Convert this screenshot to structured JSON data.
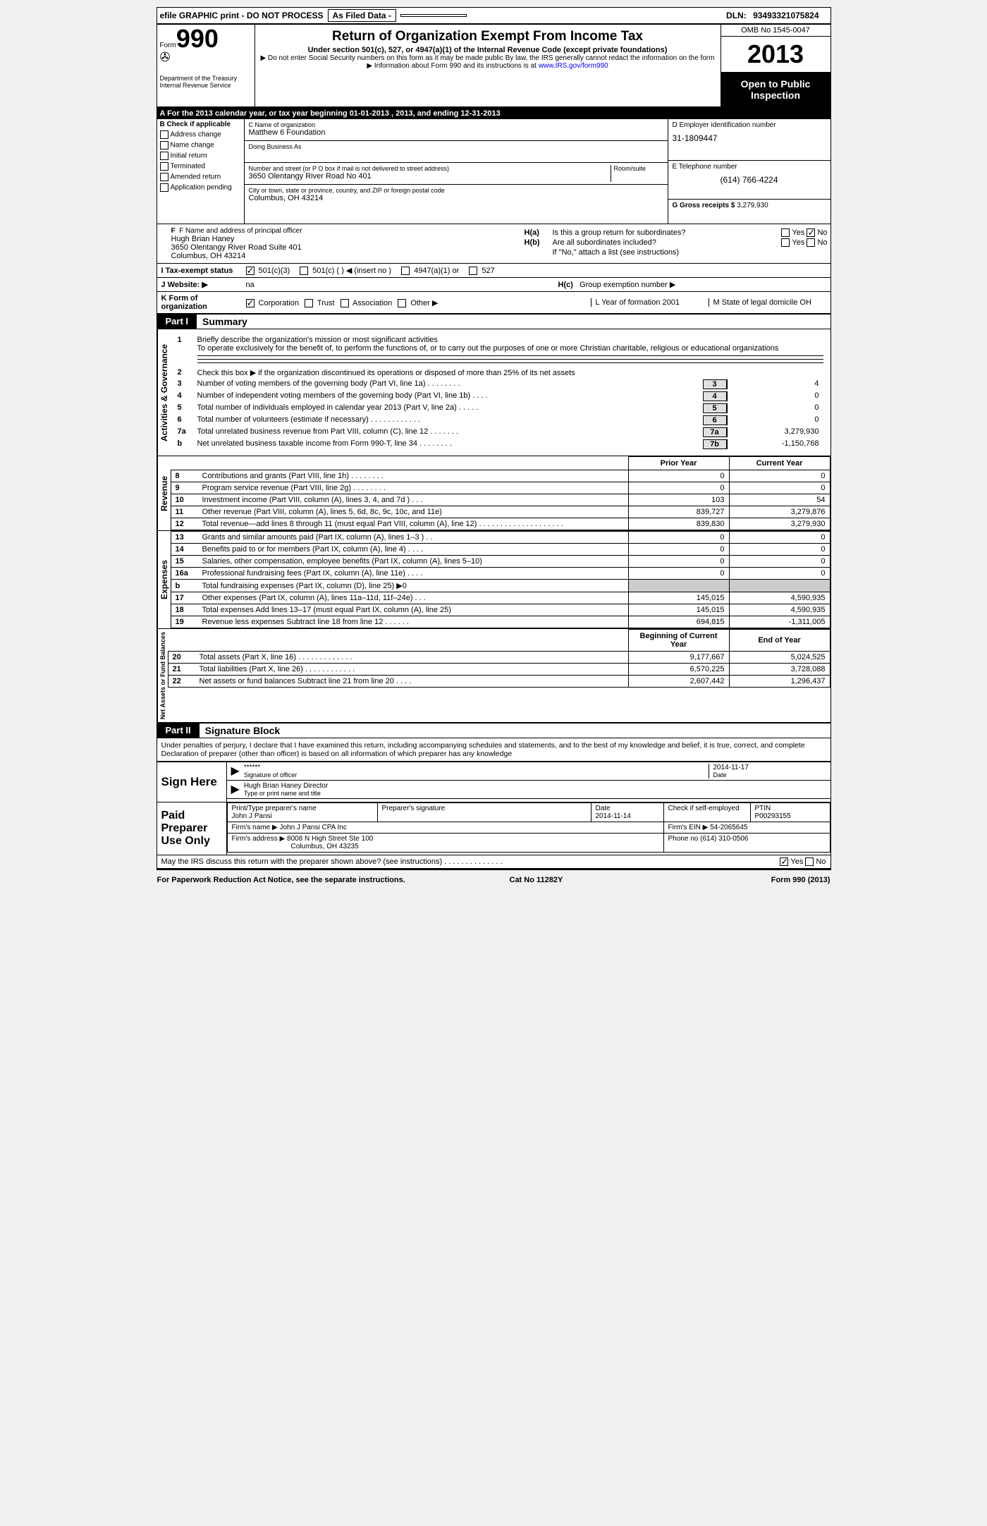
{
  "topbar": {
    "efile": "efile GRAPHIC print - DO NOT PROCESS",
    "asfiled": "As Filed Data -",
    "dln_label": "DLN:",
    "dln": "93493321075824"
  },
  "header": {
    "form_word": "Form",
    "form_num": "990",
    "dept1": "Department of the Treasury",
    "dept2": "Internal Revenue Service",
    "title": "Return of Organization Exempt From Income Tax",
    "sub": "Under section 501(c), 527, or 4947(a)(1) of the Internal Revenue Code (except private foundations)",
    "note1": "▶ Do not enter Social Security numbers on this form as it may be made public  By law, the IRS generally cannot redact the information on the form",
    "note2_pre": "▶ Information about Form 990 and its instructions is at ",
    "note2_link": "www.IRS.gov/form990",
    "omb": "OMB No  1545-0047",
    "year": "2013",
    "open": "Open to Public Inspection"
  },
  "section_a": "A  For the 2013 calendar year, or tax year beginning 01-01-2013     , 2013, and ending 12-31-2013",
  "box_b": {
    "title": "B  Check if applicable",
    "opts": [
      "Address change",
      "Name change",
      "Initial return",
      "Terminated",
      "Amended return",
      "Application pending"
    ]
  },
  "box_c": {
    "name_label": "C Name of organization",
    "name": "Matthew 6 Foundation",
    "dba_label": "Doing Business As",
    "addr_label": "Number and street (or P O  box if mail is not delivered to street address)",
    "room_label": "Room/suite",
    "addr": "3650 Olentangy River Road No 401",
    "city_label": "City or town, state or province, country, and ZIP or foreign postal code",
    "city": "Columbus, OH  43214"
  },
  "box_d": {
    "label": "D Employer identification number",
    "ein": "31-1809447",
    "tel_label": "E Telephone number",
    "tel": "(614) 766-4224",
    "gross_label": "G Gross receipts $",
    "gross": "3,279,930"
  },
  "officer": {
    "label": "F  Name and address of principal officer",
    "name": "Hugh Brian Haney",
    "addr1": "3650 Olentangy River Road Suite 401",
    "addr2": "Columbus, OH  43214"
  },
  "h": {
    "ha": "H(a)",
    "ha_text": "Is this a group return for subordinates?",
    "hb": "H(b)",
    "hb_text": "Are all subordinates included?",
    "hb_note": "If \"No,\" attach a list  (see instructions)",
    "hc": "H(c)",
    "hc_text": "Group exemption number ▶",
    "yes": "Yes",
    "no": "No"
  },
  "row_i": {
    "label": "I  Tax-exempt status",
    "opts": [
      "501(c)(3)",
      "501(c) (   ) ◀ (insert no )",
      "4947(a)(1) or",
      "527"
    ]
  },
  "row_j": {
    "label": "J  Website: ▶",
    "val": "na"
  },
  "row_k": {
    "label": "K Form of organization",
    "opts": [
      "Corporation",
      "Trust",
      "Association",
      "Other ▶"
    ],
    "l": "L Year of formation  2001",
    "m": "M State of legal domicile  OH"
  },
  "part1": {
    "label": "Part I",
    "title": "Summary"
  },
  "activities": {
    "vtitle": "Activities & Governance",
    "line1_num": "1",
    "line1_label": "Briefly describe the organization's mission or most significant activities",
    "line1_text": "To operate exclusively for the benefit of, to perform the functions of, or to carry out the purposes of one or more Christian charitable, religious or educational organizations",
    "line2_num": "2",
    "line2_text": "Check this box ▶     if the organization discontinued its operations or disposed of more than 25% of its net assets",
    "rows": [
      {
        "n": "3",
        "t": "Number of voting members of the governing body (Part VI, line 1a)   .    .    .    .    .    .    .    .",
        "box": "3",
        "v": "4"
      },
      {
        "n": "4",
        "t": "Number of independent voting members of the governing body (Part VI, line 1b)   .    .    .    .",
        "box": "4",
        "v": "0"
      },
      {
        "n": "5",
        "t": "Total number of individuals employed in calendar year 2013 (Part V, line 2a)   .    .    .    .    .",
        "box": "5",
        "v": "0"
      },
      {
        "n": "6",
        "t": "Total number of volunteers (estimate if necessary)   .    .    .    .    .    .    .    .    .    .    .    .",
        "box": "6",
        "v": "0"
      },
      {
        "n": "7a",
        "t": "Total unrelated business revenue from Part VIII, column (C), line 12   .    .    .    .    .    .    .",
        "box": "7a",
        "v": "3,279,930"
      },
      {
        "n": "b",
        "t": "Net unrelated business taxable income from Form 990-T, line 34   .    .    .    .    .    .    .    .",
        "box": "7b",
        "v": "-1,150,768"
      }
    ]
  },
  "revenue": {
    "vtitle": "Revenue",
    "th1": "Prior Year",
    "th2": "Current Year",
    "rows": [
      {
        "n": "8",
        "t": "Contributions and grants (Part VIII, line 1h)   .    .    .    .    .    .    .    .",
        "p": "0",
        "c": "0"
      },
      {
        "n": "9",
        "t": "Program service revenue (Part VIII, line 2g)   .    .    .    .    .    .    .    .",
        "p": "0",
        "c": "0"
      },
      {
        "n": "10",
        "t": "Investment income (Part VIII, column (A), lines 3, 4, and 7d )   .    .    .",
        "p": "103",
        "c": "54"
      },
      {
        "n": "11",
        "t": "Other revenue (Part VIII, column (A), lines 5, 6d, 8c, 9c, 10c, and 11e)",
        "p": "839,727",
        "c": "3,279,876"
      },
      {
        "n": "12",
        "t": "Total revenue—add lines 8 through 11 (must equal Part VIII, column (A), line 12) .    .    .    .    .    .    .    .    .    .    .    .    .    .    .    .    .    .    .    .",
        "p": "839,830",
        "c": "3,279,930"
      }
    ]
  },
  "expenses": {
    "vtitle": "Expenses",
    "rows": [
      {
        "n": "13",
        "t": "Grants and similar amounts paid (Part IX, column (A), lines 1–3 )   .    .",
        "p": "0",
        "c": "0"
      },
      {
        "n": "14",
        "t": "Benefits paid to or for members (Part IX, column (A), line 4)   .    .    .    .",
        "p": "0",
        "c": "0"
      },
      {
        "n": "15",
        "t": "Salaries, other compensation, employee benefits (Part IX, column (A), lines 5–10)",
        "p": "0",
        "c": "0"
      },
      {
        "n": "16a",
        "t": "Professional fundraising fees (Part IX, column (A), line 11e)   .    .    .    .",
        "p": "0",
        "c": "0"
      },
      {
        "n": "b",
        "t": "Total fundraising expenses (Part IX, column (D), line 25) ▶0",
        "p": "",
        "c": "",
        "shade": true
      },
      {
        "n": "17",
        "t": "Other expenses (Part IX, column (A), lines 11a–11d, 11f–24e)   .    .    .",
        "p": "145,015",
        "c": "4,590,935"
      },
      {
        "n": "18",
        "t": "Total expenses  Add lines 13–17 (must equal Part IX, column (A), line 25)",
        "p": "145,015",
        "c": "4,590,935"
      },
      {
        "n": "19",
        "t": "Revenue less expenses  Subtract line 18 from line 12   .    .    .    .    .    .",
        "p": "694,815",
        "c": "-1,311,005"
      }
    ]
  },
  "netassets": {
    "vtitle": "Net Assets or Fund Balances",
    "th1": "Beginning of Current Year",
    "th2": "End of Year",
    "rows": [
      {
        "n": "20",
        "t": "Total assets (Part X, line 16)   .    .    .    .    .    .    .    .    .    .    .    .    .",
        "p": "9,177,667",
        "c": "5,024,525"
      },
      {
        "n": "21",
        "t": "Total liabilities (Part X, line 26)   .    .    .    .    .    .    .    .    .    .    .    .",
        "p": "6,570,225",
        "c": "3,728,088"
      },
      {
        "n": "22",
        "t": "Net assets or fund balances  Subtract line 21 from line 20   .    .    .    .",
        "p": "2,607,442",
        "c": "1,296,437"
      }
    ]
  },
  "part2": {
    "label": "Part II",
    "title": "Signature Block"
  },
  "perjury": "Under penalties of perjury, I declare that I have examined this return, including accompanying schedules and statements, and to the best of my knowledge and belief, it is true, correct, and complete  Declaration of preparer (other than officer) is based on all information of which preparer has any knowledge",
  "sign": {
    "label": "Sign Here",
    "sig": "******",
    "sig_sub": "Signature of officer",
    "date": "2014-11-17",
    "date_sub": "Date",
    "name": "Hugh Brian Haney  Director",
    "name_sub": "Type or print name and title"
  },
  "prep": {
    "label": "Paid Preparer Use Only",
    "h1": "Print/Type preparer's name",
    "h1v": "John J Pansi",
    "h2": "Preparer's signature",
    "h3": "Date",
    "h3v": "2014-11-14",
    "h4": "Check      if self-employed",
    "h5": "PTIN",
    "h5v": "P00293155",
    "firm_name_label": "Firm's name    ▶",
    "firm_name": "John J Pansi CPA Inc",
    "firm_ein_label": "Firm's EIN ▶",
    "firm_ein": "54-2065645",
    "firm_addr_label": "Firm's address ▶",
    "firm_addr1": "8008 N High Street Ste 100",
    "firm_addr2": "Columbus, OH  43235",
    "phone_label": "Phone no",
    "phone": "(614) 310-0506"
  },
  "irs_discuss": "May the IRS discuss this return with the preparer shown above? (see instructions)   .    .    .    .    .    .    .    .    .    .    .    .    .    .",
  "footer": {
    "left": "For Paperwork Reduction Act Notice, see the separate instructions.",
    "mid": "Cat No  11282Y",
    "right": "Form 990 (2013)"
  }
}
